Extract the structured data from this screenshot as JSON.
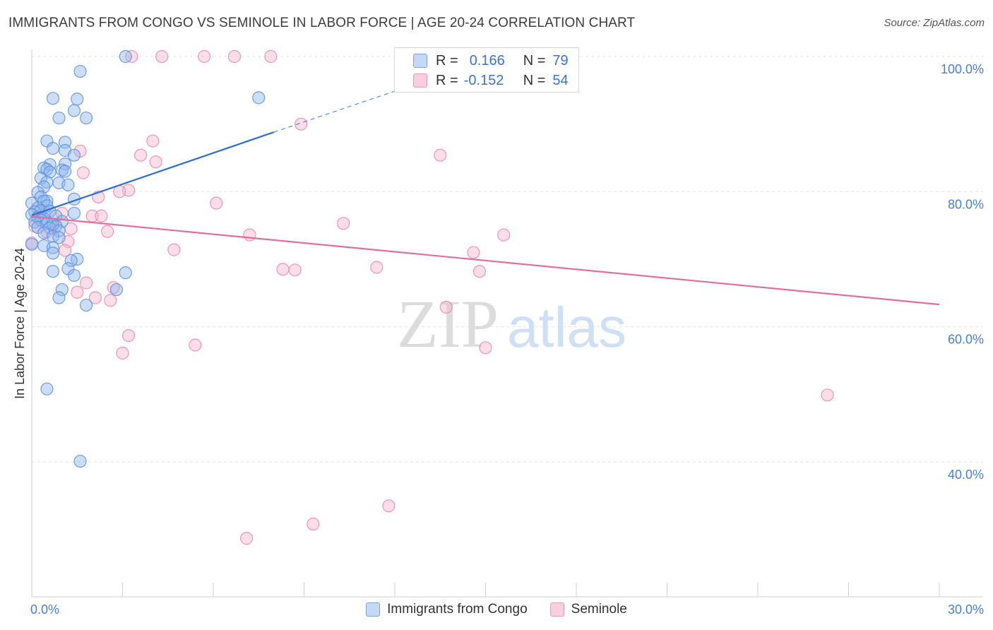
{
  "title": "IMMIGRANTS FROM CONGO VS SEMINOLE IN LABOR FORCE | AGE 20-24 CORRELATION CHART",
  "source": "Source: ZipAtlas.com",
  "watermark": {
    "zip": "ZIP",
    "atlas": "atlas"
  },
  "legend_top": [
    {
      "r_label": "R =",
      "r_value": "0.166",
      "n_label": "N =",
      "n_value": "79"
    },
    {
      "r_label": "R =",
      "r_value": "-0.152",
      "n_label": "N =",
      "n_value": "54"
    }
  ],
  "chart_data": {
    "type": "scatter",
    "title": "IMMIGRANTS FROM CONGO VS SEMINOLE IN LABOR FORCE | AGE 20-24 CORRELATION CHART",
    "xlabel": "",
    "ylabel": "In Labor Force | Age 20-24",
    "xlim": [
      0,
      30
    ],
    "ylim": [
      20,
      102
    ],
    "x_tick_labels": [
      "0.0%",
      "30.0%"
    ],
    "y_ticks": [
      40,
      60,
      80,
      100
    ],
    "y_tick_labels": [
      "40.0%",
      "60.0%",
      "80.0%",
      "100.0%"
    ],
    "grid": true,
    "legend_position": "top-center",
    "series": [
      {
        "name": "Immigrants from Congo",
        "color": "#8fb4ec",
        "stroke": "#5b8fe0",
        "trend": {
          "x": [
            0.0,
            8.0
          ],
          "y": [
            76.5,
            88.8
          ],
          "color": "#2f6fd0",
          "dashed_extension": {
            "x": [
              8.0,
              13.4
            ],
            "y": [
              88.8,
              97.0
            ]
          }
        },
        "points": [
          [
            3.1,
            100
          ],
          [
            1.6,
            97.8
          ],
          [
            0.7,
            93.8
          ],
          [
            1.5,
            93.7
          ],
          [
            7.5,
            93.9
          ],
          [
            1.4,
            92.0
          ],
          [
            0.9,
            90.9
          ],
          [
            1.8,
            90.9
          ],
          [
            0.5,
            87.5
          ],
          [
            1.1,
            87.3
          ],
          [
            0.7,
            86.4
          ],
          [
            1.1,
            86.1
          ],
          [
            1.4,
            85.4
          ],
          [
            0.6,
            84.0
          ],
          [
            1.1,
            84.1
          ],
          [
            0.4,
            83.5
          ],
          [
            0.5,
            83.3
          ],
          [
            1.0,
            83.2
          ],
          [
            1.1,
            83.0
          ],
          [
            0.6,
            82.9
          ],
          [
            0.3,
            82.0
          ],
          [
            0.5,
            81.4
          ],
          [
            0.9,
            81.3
          ],
          [
            1.2,
            81.0
          ],
          [
            0.4,
            80.7
          ],
          [
            0.2,
            79.9
          ],
          [
            0.3,
            79.2
          ],
          [
            1.4,
            78.9
          ],
          [
            0.5,
            78.6
          ],
          [
            0.4,
            78.6
          ],
          [
            0.0,
            78.3
          ],
          [
            0.5,
            77.9
          ],
          [
            0.2,
            77.6
          ],
          [
            0.3,
            77.2
          ],
          [
            0.6,
            77.1
          ],
          [
            0.1,
            77.0
          ],
          [
            1.4,
            76.8
          ],
          [
            0.0,
            76.6
          ],
          [
            0.8,
            76.4
          ],
          [
            0.2,
            76.2
          ],
          [
            0.4,
            76.0
          ],
          [
            0.3,
            75.8
          ],
          [
            1.0,
            75.6
          ],
          [
            0.1,
            75.5
          ],
          [
            0.5,
            75.3
          ],
          [
            0.7,
            75.2
          ],
          [
            0.8,
            74.9
          ],
          [
            0.2,
            74.7
          ],
          [
            0.6,
            74.6
          ],
          [
            0.9,
            74.2
          ],
          [
            0.4,
            73.9
          ],
          [
            0.7,
            73.4
          ],
          [
            0.9,
            73.2
          ],
          [
            0.0,
            72.2
          ],
          [
            0.4,
            72.0
          ],
          [
            0.7,
            71.7
          ],
          [
            0.7,
            70.9
          ],
          [
            1.5,
            70.0
          ],
          [
            1.3,
            69.8
          ],
          [
            1.2,
            68.6
          ],
          [
            0.7,
            68.2
          ],
          [
            3.1,
            68.0
          ],
          [
            1.4,
            67.6
          ],
          [
            1.0,
            65.5
          ],
          [
            2.8,
            65.5
          ],
          [
            0.9,
            64.3
          ],
          [
            1.8,
            63.2
          ],
          [
            0.5,
            50.8
          ],
          [
            1.6,
            40.1
          ]
        ]
      },
      {
        "name": "Seminole",
        "color": "#f6b6cb",
        "stroke": "#ea86a8",
        "trend": {
          "x": [
            0.0,
            30.0
          ],
          "y": [
            76.3,
            63.3
          ],
          "color": "#e0709a"
        },
        "points": [
          [
            3.3,
            100
          ],
          [
            4.3,
            100
          ],
          [
            5.7,
            100
          ],
          [
            6.7,
            100
          ],
          [
            7.9,
            100
          ],
          [
            16.8,
            100
          ],
          [
            8.9,
            90.0
          ],
          [
            4.0,
            87.5
          ],
          [
            1.6,
            86.0
          ],
          [
            13.5,
            85.4
          ],
          [
            3.6,
            85.4
          ],
          [
            4.1,
            84.4
          ],
          [
            1.7,
            82.8
          ],
          [
            3.2,
            80.2
          ],
          [
            2.9,
            80.0
          ],
          [
            2.2,
            79.2
          ],
          [
            6.1,
            78.3
          ],
          [
            0.4,
            77.2
          ],
          [
            1.0,
            76.8
          ],
          [
            2.0,
            76.4
          ],
          [
            2.3,
            76.4
          ],
          [
            10.3,
            75.3
          ],
          [
            0.7,
            75.0
          ],
          [
            0.1,
            74.9
          ],
          [
            1.3,
            74.5
          ],
          [
            2.5,
            74.1
          ],
          [
            0.5,
            74.0
          ],
          [
            7.2,
            73.6
          ],
          [
            15.6,
            73.6
          ],
          [
            1.2,
            72.6
          ],
          [
            4.7,
            71.4
          ],
          [
            14.6,
            71.0
          ],
          [
            1.1,
            71.3
          ],
          [
            0.0,
            72.4
          ],
          [
            8.7,
            68.4
          ],
          [
            8.3,
            68.5
          ],
          [
            11.4,
            68.8
          ],
          [
            14.8,
            68.2
          ],
          [
            1.8,
            66.5
          ],
          [
            2.7,
            65.8
          ],
          [
            1.5,
            65.1
          ],
          [
            2.1,
            64.3
          ],
          [
            2.6,
            63.9
          ],
          [
            13.7,
            62.9
          ],
          [
            3.2,
            58.7
          ],
          [
            5.4,
            57.3
          ],
          [
            3.0,
            56.1
          ],
          [
            15.0,
            56.9
          ],
          [
            26.3,
            49.9
          ],
          [
            11.8,
            33.5
          ],
          [
            9.3,
            30.8
          ],
          [
            7.1,
            28.7
          ]
        ]
      }
    ]
  }
}
